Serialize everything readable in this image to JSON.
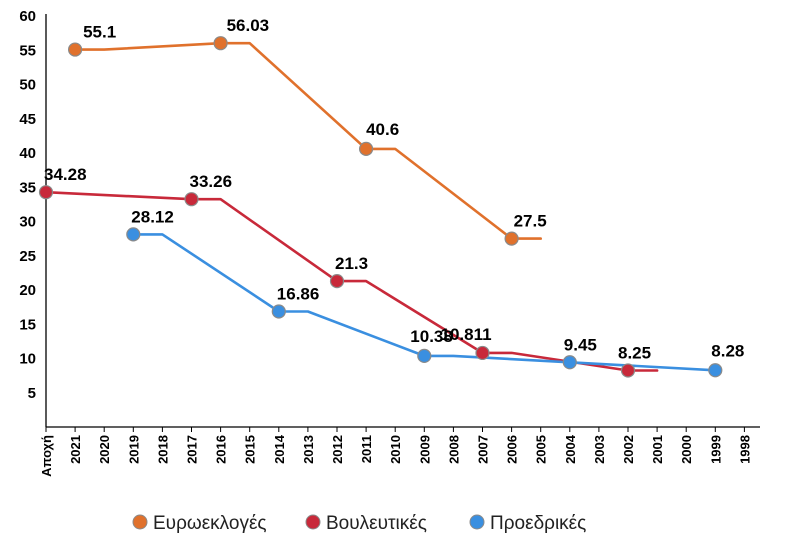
{
  "chart_data": {
    "type": "line",
    "title": "",
    "xlabel": "",
    "ylabel": "",
    "ylim": [
      0,
      60
    ],
    "yticks": [
      "5",
      "10",
      "15",
      "20",
      "25",
      "30",
      "35",
      "40",
      "45",
      "50",
      "55",
      "60"
    ],
    "x_categories": [
      "Αποχή",
      "2021",
      "2020",
      "2019",
      "2018",
      "2017",
      "2016",
      "2015",
      "2014",
      "2013",
      "2012",
      "2011",
      "2010",
      "2009",
      "2008",
      "2007",
      "2006",
      "2005",
      "2004",
      "2003",
      "2002",
      "2001",
      "2000",
      "1999",
      "1998"
    ],
    "grid": false,
    "legend_position": "bottom",
    "series": [
      {
        "name": "Ευρωεκλογές",
        "color": "#E0712C",
        "line": [
          [
            "2021",
            55.1
          ],
          [
            "2020",
            55.1
          ],
          [
            "2016",
            56.03
          ],
          [
            "2015",
            56.03
          ],
          [
            "2011",
            40.6
          ],
          [
            "2010",
            40.6
          ],
          [
            "2006",
            27.5
          ],
          [
            "2005",
            27.5
          ]
        ],
        "points": [
          {
            "x": "2021",
            "y": 55.1,
            "label": "55.1"
          },
          {
            "x": "2016",
            "y": 56.03,
            "label": "56.03"
          },
          {
            "x": "2011",
            "y": 40.6,
            "label": "40.6"
          },
          {
            "x": "2006",
            "y": 27.5,
            "label": "27.5"
          }
        ]
      },
      {
        "name": "Βουλευτικές",
        "color": "#C8293A",
        "line": [
          [
            "Αποχή",
            34.28
          ],
          [
            "2017",
            33.26
          ],
          [
            "2016",
            33.26
          ],
          [
            "2012",
            21.3
          ],
          [
            "2011",
            21.3
          ],
          [
            "2007",
            10.811
          ],
          [
            "2006",
            10.811
          ],
          [
            "2002",
            8.25
          ],
          [
            "2001",
            8.25
          ]
        ],
        "points": [
          {
            "x": "Αποχή",
            "y": 34.28,
            "label": "34.28"
          },
          {
            "x": "2017",
            "y": 33.26,
            "label": "33.26"
          },
          {
            "x": "2012",
            "y": 21.3,
            "label": "21.3"
          },
          {
            "x": "2007",
            "y": 10.811,
            "label": "10.811"
          },
          {
            "x": "2002",
            "y": 8.25,
            "label": "8.25"
          }
        ]
      },
      {
        "name": "Προεδρικές",
        "color": "#3A8FE0",
        "line": [
          [
            "2019",
            28.12
          ],
          [
            "2018",
            28.12
          ],
          [
            "2014",
            16.86
          ],
          [
            "2013",
            16.86
          ],
          [
            "2009",
            10.38
          ],
          [
            "2008",
            10.38
          ],
          [
            "2004",
            9.45
          ],
          [
            "1999",
            8.28
          ]
        ],
        "points": [
          {
            "x": "2019",
            "y": 28.12,
            "label": "28.12"
          },
          {
            "x": "2014",
            "y": 16.86,
            "label": "16.86"
          },
          {
            "x": "2009",
            "y": 10.38,
            "label": "10.38"
          },
          {
            "x": "2004",
            "y": 9.45,
            "label": "9.45"
          },
          {
            "x": "1999",
            "y": 8.28,
            "label": "8.28"
          }
        ]
      }
    ]
  }
}
